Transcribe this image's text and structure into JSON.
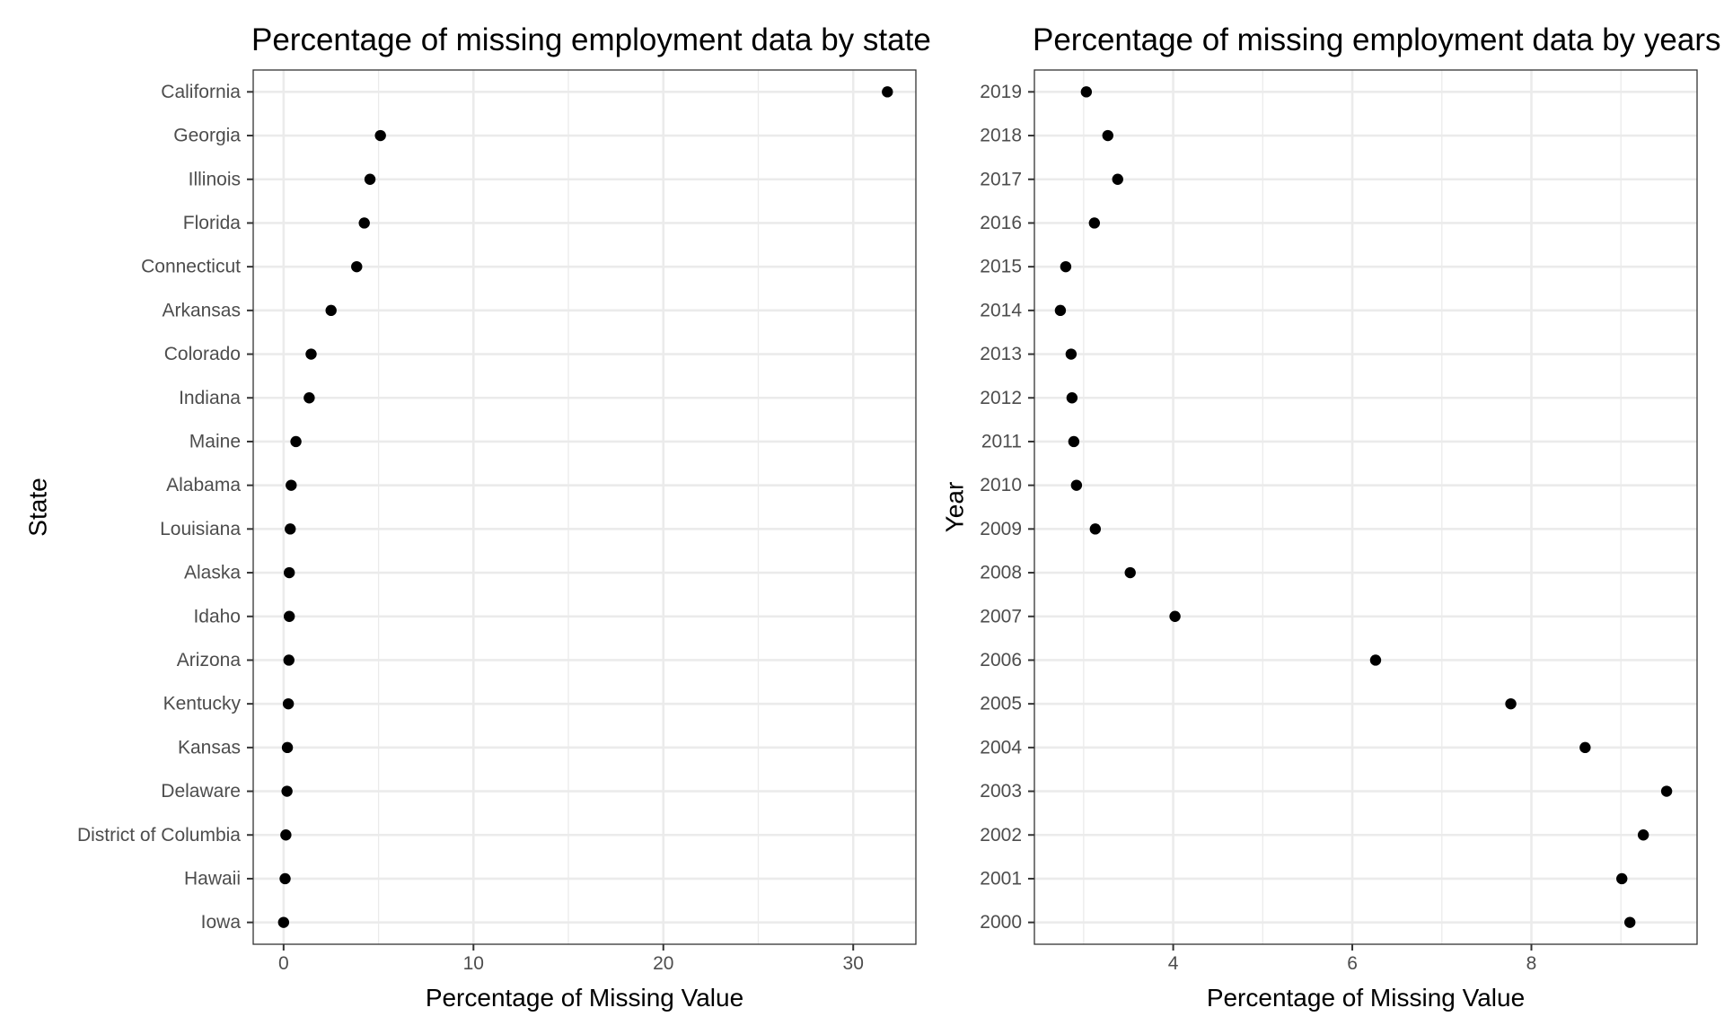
{
  "chart_data": [
    {
      "type": "scatter",
      "title": "Percentage of missing employment data by state",
      "xlabel": "Percentage of Missing Value",
      "ylabel": "State",
      "xlim": [
        -1.6,
        33.3
      ],
      "xticks": [
        0,
        10,
        20,
        30
      ],
      "xtick_labels": [
        "0",
        "10",
        "20",
        "30"
      ],
      "xminor": [
        5,
        15,
        25
      ],
      "grid": true,
      "categories": [
        "California",
        "Georgia",
        "Illinois",
        "Florida",
        "Connecticut",
        "Arkansas",
        "Colorado",
        "Indiana",
        "Maine",
        "Alabama",
        "Louisiana",
        "Alaska",
        "Idaho",
        "Arizona",
        "Kentucky",
        "Kansas",
        "Delaware",
        "District of Columbia",
        "Hawaii",
        "Iowa"
      ],
      "values": [
        31.8,
        5.1,
        4.55,
        4.25,
        3.85,
        2.5,
        1.45,
        1.35,
        0.65,
        0.4,
        0.35,
        0.3,
        0.3,
        0.28,
        0.25,
        0.2,
        0.18,
        0.12,
        0.08,
        0.0
      ]
    },
    {
      "type": "scatter",
      "title": "Percentage of missing employment data by years",
      "xlabel": "Percentage of Missing Value",
      "ylabel": "Year",
      "xlim": [
        2.45,
        9.85
      ],
      "xticks": [
        4,
        6,
        8
      ],
      "xtick_labels": [
        "4",
        "6",
        "8"
      ],
      "xminor": [
        3,
        5,
        7,
        9
      ],
      "grid": true,
      "categories": [
        "2019",
        "2018",
        "2017",
        "2016",
        "2015",
        "2014",
        "2013",
        "2012",
        "2011",
        "2010",
        "2009",
        "2008",
        "2007",
        "2006",
        "2005",
        "2004",
        "2003",
        "2002",
        "2001",
        "2000"
      ],
      "values": [
        3.03,
        3.27,
        3.38,
        3.12,
        2.8,
        2.74,
        2.86,
        2.87,
        2.89,
        2.92,
        3.13,
        3.52,
        4.02,
        6.26,
        7.77,
        8.6,
        9.51,
        9.25,
        9.01,
        9.1
      ]
    }
  ]
}
